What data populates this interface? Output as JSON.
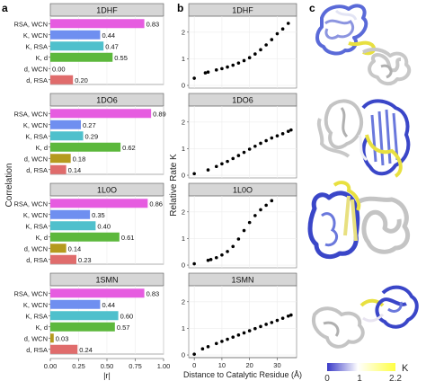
{
  "panel_labels": [
    "a",
    "b",
    "c"
  ],
  "bar_palette": [
    "#e65ce0",
    "#6f8ff0",
    "#4fc0cc",
    "#5cb83c",
    "#b59a1e",
    "#e06c6c"
  ],
  "protein_colorbar": {
    "low_color": "#3a3ac8",
    "mid_color": "#ffffff",
    "high_color": "#ffff44",
    "ticks": [
      "0",
      "1",
      "2.2"
    ],
    "label": "K"
  },
  "chart_data": [
    {
      "type": "bar",
      "orientation": "horizontal",
      "ylabel": "Correlation",
      "xlabel": "|r|",
      "xlim": [
        0,
        1.0
      ],
      "xticks": [
        "0.00",
        "0.25",
        "0.50",
        "0.75",
        "1.00"
      ],
      "categories": [
        "RSA, WCN",
        "K, WCN",
        "K, RSA",
        "K, d",
        "d, WCN",
        "d, RSA"
      ],
      "facets": [
        {
          "title": "1DHF",
          "values": [
            0.83,
            0.44,
            0.47,
            0.55,
            0.0,
            0.2
          ],
          "labels": [
            "0.83",
            "0.44",
            "0.47",
            "0.55",
            "0.00",
            "0.20"
          ]
        },
        {
          "title": "1DO6",
          "values": [
            0.89,
            0.27,
            0.29,
            0.62,
            0.18,
            0.14
          ],
          "labels": [
            "0.89",
            "0.27",
            "0.29",
            "0.62",
            "0.18",
            "0.14"
          ]
        },
        {
          "title": "1L0O",
          "values": [
            0.86,
            0.35,
            0.4,
            0.61,
            0.14,
            0.23
          ],
          "labels": [
            "0.86",
            "0.35",
            "0.40",
            "0.61",
            "0.14",
            "0.23"
          ]
        },
        {
          "title": "1SMN",
          "values": [
            0.83,
            0.44,
            0.6,
            0.57,
            0.03,
            0.24
          ],
          "labels": [
            "0.83",
            "0.44",
            "0.60",
            "0.57",
            "0.03",
            "0.24"
          ]
        }
      ]
    },
    {
      "type": "scatter",
      "xlabel": "Distance to Catalytic Residue (Å)",
      "ylabel": "Relative Rate K",
      "xlim": [
        -2,
        37
      ],
      "ylim": [
        -0.1,
        2.6
      ],
      "xticks": [
        "0",
        "10",
        "20",
        "30"
      ],
      "yticks": [
        "0",
        "1",
        "2"
      ],
      "facets": [
        {
          "title": "1DHF",
          "x": [
            0,
            4,
            5,
            8,
            10,
            12,
            14,
            16,
            18,
            20,
            22,
            24,
            26,
            28,
            30,
            32,
            34
          ],
          "y": [
            0.27,
            0.47,
            0.5,
            0.58,
            0.63,
            0.69,
            0.76,
            0.84,
            0.93,
            1.04,
            1.18,
            1.34,
            1.52,
            1.72,
            1.94,
            2.12,
            2.33
          ]
        },
        {
          "title": "1DO6",
          "x": [
            0,
            5,
            8,
            10,
            12,
            14,
            16,
            18,
            20,
            22,
            24,
            26,
            28,
            30,
            32,
            34,
            35
          ],
          "y": [
            0.06,
            0.2,
            0.33,
            0.43,
            0.52,
            0.63,
            0.74,
            0.86,
            0.98,
            1.09,
            1.2,
            1.3,
            1.4,
            1.48,
            1.56,
            1.65,
            1.7
          ]
        },
        {
          "title": "1L0O",
          "x": [
            0,
            5,
            6,
            8,
            10,
            12,
            14,
            16,
            18,
            20,
            22,
            24,
            26,
            28
          ],
          "y": [
            0.05,
            0.18,
            0.21,
            0.28,
            0.38,
            0.51,
            0.7,
            0.98,
            1.3,
            1.6,
            1.86,
            2.08,
            2.25,
            2.42
          ]
        },
        {
          "title": "1SMN",
          "x": [
            0,
            3,
            5,
            8,
            10,
            12,
            14,
            16,
            18,
            20,
            22,
            24,
            26,
            28,
            30,
            32,
            34,
            35
          ],
          "y": [
            0.03,
            0.23,
            0.31,
            0.43,
            0.51,
            0.59,
            0.67,
            0.75,
            0.83,
            0.91,
            0.99,
            1.07,
            1.15,
            1.22,
            1.3,
            1.38,
            1.46,
            1.5
          ]
        }
      ]
    }
  ]
}
